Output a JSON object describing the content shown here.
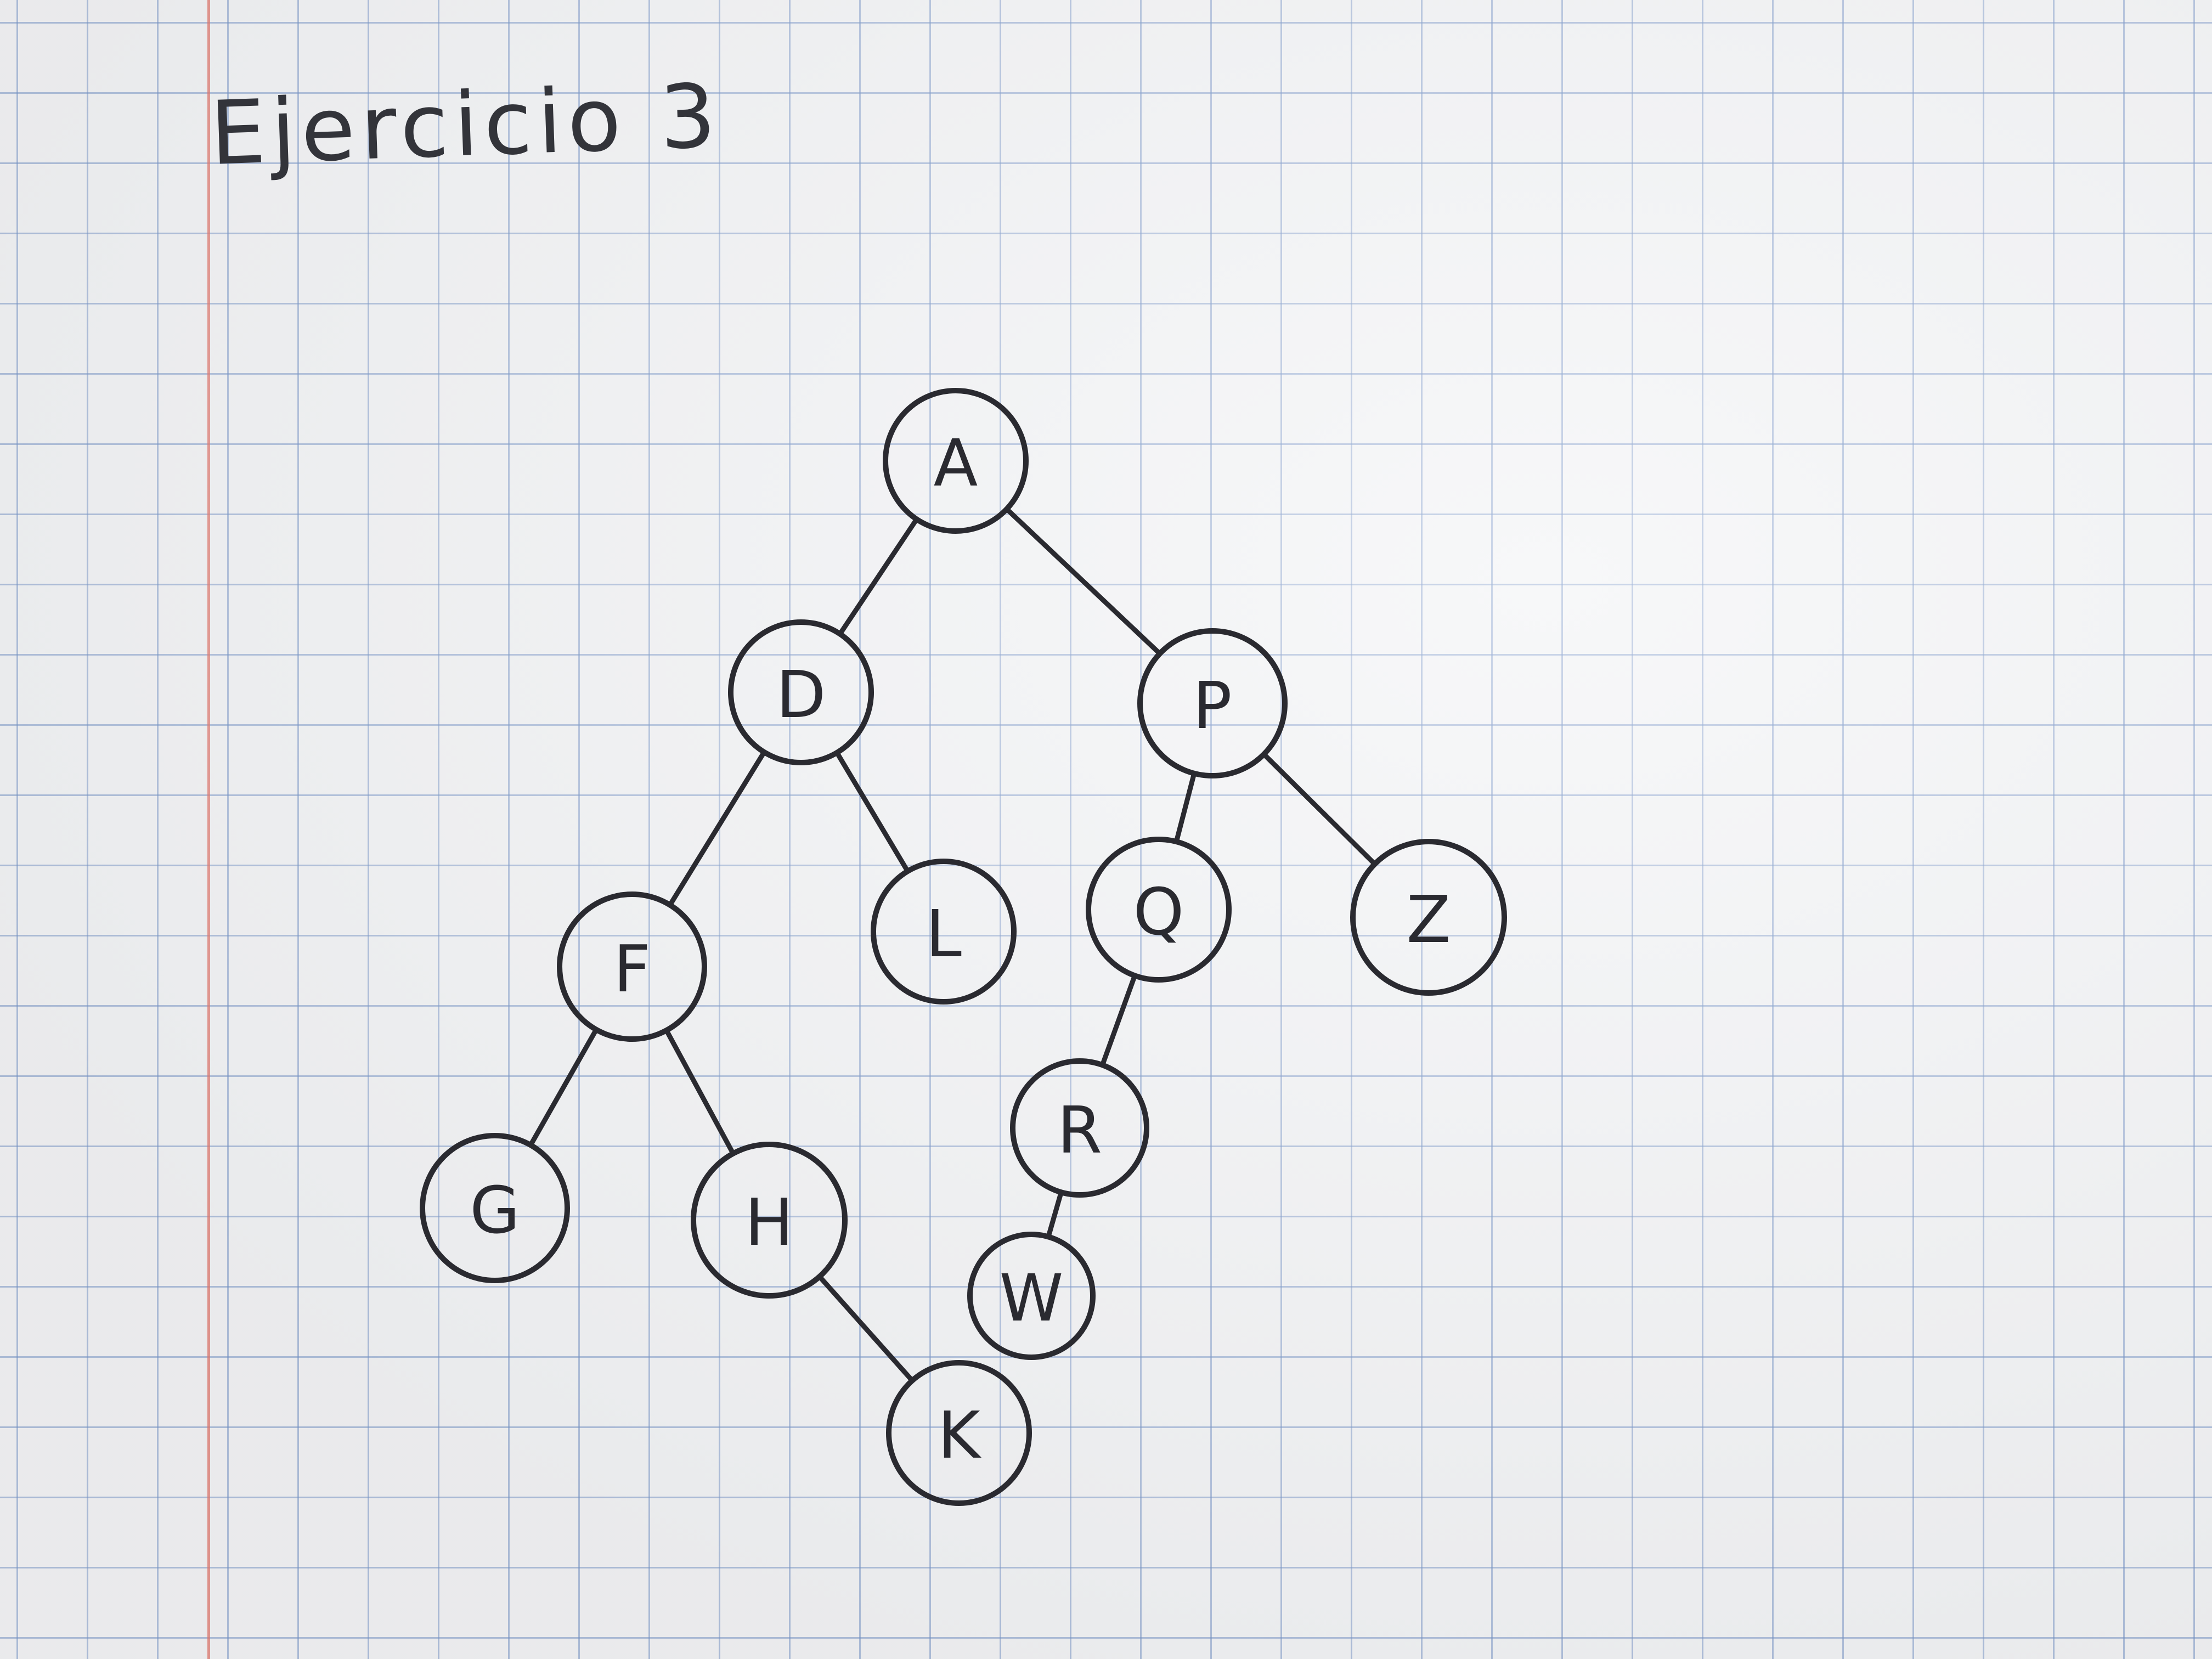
{
  "title": "Ejercicio 3",
  "colors": {
    "ink": "#2a2a30",
    "grid": "#7896c8",
    "margin_line": "#e1786e"
  },
  "tree": {
    "nodes": [
      {
        "id": "A",
        "label": "A"
      },
      {
        "id": "D",
        "label": "D"
      },
      {
        "id": "P",
        "label": "P"
      },
      {
        "id": "F",
        "label": "F"
      },
      {
        "id": "L",
        "label": "L"
      },
      {
        "id": "Q",
        "label": "Q"
      },
      {
        "id": "Z",
        "label": "Z"
      },
      {
        "id": "G",
        "label": "G"
      },
      {
        "id": "H",
        "label": "H"
      },
      {
        "id": "R",
        "label": "R"
      },
      {
        "id": "W",
        "label": "W"
      },
      {
        "id": "K",
        "label": "K"
      }
    ],
    "edges": [
      {
        "from": "A",
        "to": "D"
      },
      {
        "from": "A",
        "to": "P"
      },
      {
        "from": "D",
        "to": "F"
      },
      {
        "from": "D",
        "to": "L"
      },
      {
        "from": "P",
        "to": "Q"
      },
      {
        "from": "P",
        "to": "Z"
      },
      {
        "from": "F",
        "to": "G"
      },
      {
        "from": "F",
        "to": "H"
      },
      {
        "from": "H",
        "to": "K"
      },
      {
        "from": "Q",
        "to": "R"
      },
      {
        "from": "R",
        "to": "W"
      }
    ]
  }
}
